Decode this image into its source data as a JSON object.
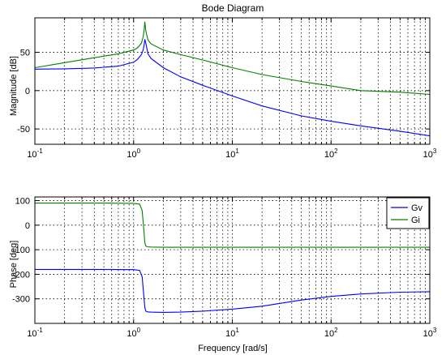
{
  "chart_data": [
    {
      "type": "line",
      "panel": "magnitude",
      "title": "Bode Diagram",
      "xlabel": "",
      "ylabel": "Magnitude [dB]",
      "xscale": "log",
      "xlim": [
        0.1,
        1000
      ],
      "ylim": [
        -70,
        95
      ],
      "grid": true,
      "yticks": [
        -50,
        0,
        50
      ],
      "yticklabels": [
        "-50",
        "0",
        "50"
      ],
      "xticks": [
        0.1,
        1,
        10,
        100,
        1000
      ],
      "xticklabels": [
        {
          "base": "10",
          "exp": "-1"
        },
        {
          "base": "10",
          "exp": "0"
        },
        {
          "base": "10",
          "exp": "1"
        },
        {
          "base": "10",
          "exp": "2"
        },
        {
          "base": "10",
          "exp": "3"
        }
      ],
      "series": [
        {
          "color": "#0000ff",
          "x": [
            0.1,
            0.2,
            0.4,
            0.7,
            1.0,
            1.1,
            1.2,
            1.25,
            1.28,
            1.3,
            1.33,
            1.4,
            1.5,
            2,
            3,
            5,
            10,
            20,
            50,
            100,
            200,
            500,
            1000
          ],
          "y": [
            28,
            28.5,
            29.5,
            32,
            37,
            41,
            47,
            53,
            60,
            67,
            62,
            48,
            42,
            30,
            18,
            7,
            -7,
            -20,
            -33,
            -40,
            -46,
            -53,
            -59
          ]
        },
        {
          "color": "#008000",
          "x": [
            0.1,
            0.2,
            0.4,
            0.7,
            1.0,
            1.1,
            1.2,
            1.25,
            1.28,
            1.3,
            1.33,
            1.4,
            1.5,
            2,
            3,
            5,
            10,
            20,
            50,
            100,
            200,
            500,
            1000
          ],
          "y": [
            30,
            36.5,
            43,
            48,
            53,
            56,
            62,
            70,
            80,
            90,
            78,
            66,
            61,
            53,
            47,
            40,
            30,
            21,
            12,
            6,
            0,
            -2,
            -5
          ]
        }
      ]
    },
    {
      "type": "line",
      "panel": "phase",
      "title": "",
      "xlabel": "Frequency [rad/s]",
      "ylabel": "Phase [deg]",
      "xscale": "log",
      "xlim": [
        0.1,
        1000
      ],
      "ylim": [
        -400,
        115
      ],
      "grid": true,
      "legend": "top-right",
      "yticks": [
        -300,
        -200,
        -100,
        0,
        100
      ],
      "yticklabels": [
        "-300",
        "-200",
        "-100",
        "0",
        "100"
      ],
      "xticks": [
        0.1,
        1,
        10,
        100,
        1000
      ],
      "xticklabels": [
        {
          "base": "10",
          "exp": "-1"
        },
        {
          "base": "10",
          "exp": "0"
        },
        {
          "base": "10",
          "exp": "1"
        },
        {
          "base": "10",
          "exp": "2"
        },
        {
          "base": "10",
          "exp": "3"
        }
      ],
      "series": [
        {
          "name": "Gv",
          "color": "#0000ff",
          "x": [
            0.1,
            0.5,
            1.0,
            1.15,
            1.22,
            1.27,
            1.3,
            1.33,
            1.38,
            1.5,
            2,
            3,
            5,
            10,
            20,
            50,
            100,
            200,
            500,
            1000
          ],
          "y": [
            -180,
            -180,
            -181,
            -184,
            -210,
            -290,
            -335,
            -350,
            -353,
            -354,
            -355,
            -354,
            -350,
            -342,
            -330,
            -305,
            -290,
            -280,
            -273,
            -271
          ]
        },
        {
          "name": "Gi",
          "color": "#008000",
          "x": [
            0.1,
            0.5,
            1.0,
            1.15,
            1.22,
            1.27,
            1.3,
            1.33,
            1.38,
            1.5,
            2,
            10,
            100,
            1000
          ],
          "y": [
            90,
            90,
            89,
            86,
            60,
            -20,
            -70,
            -85,
            -88,
            -89,
            -90,
            -90,
            -90,
            -90
          ]
        }
      ]
    }
  ]
}
